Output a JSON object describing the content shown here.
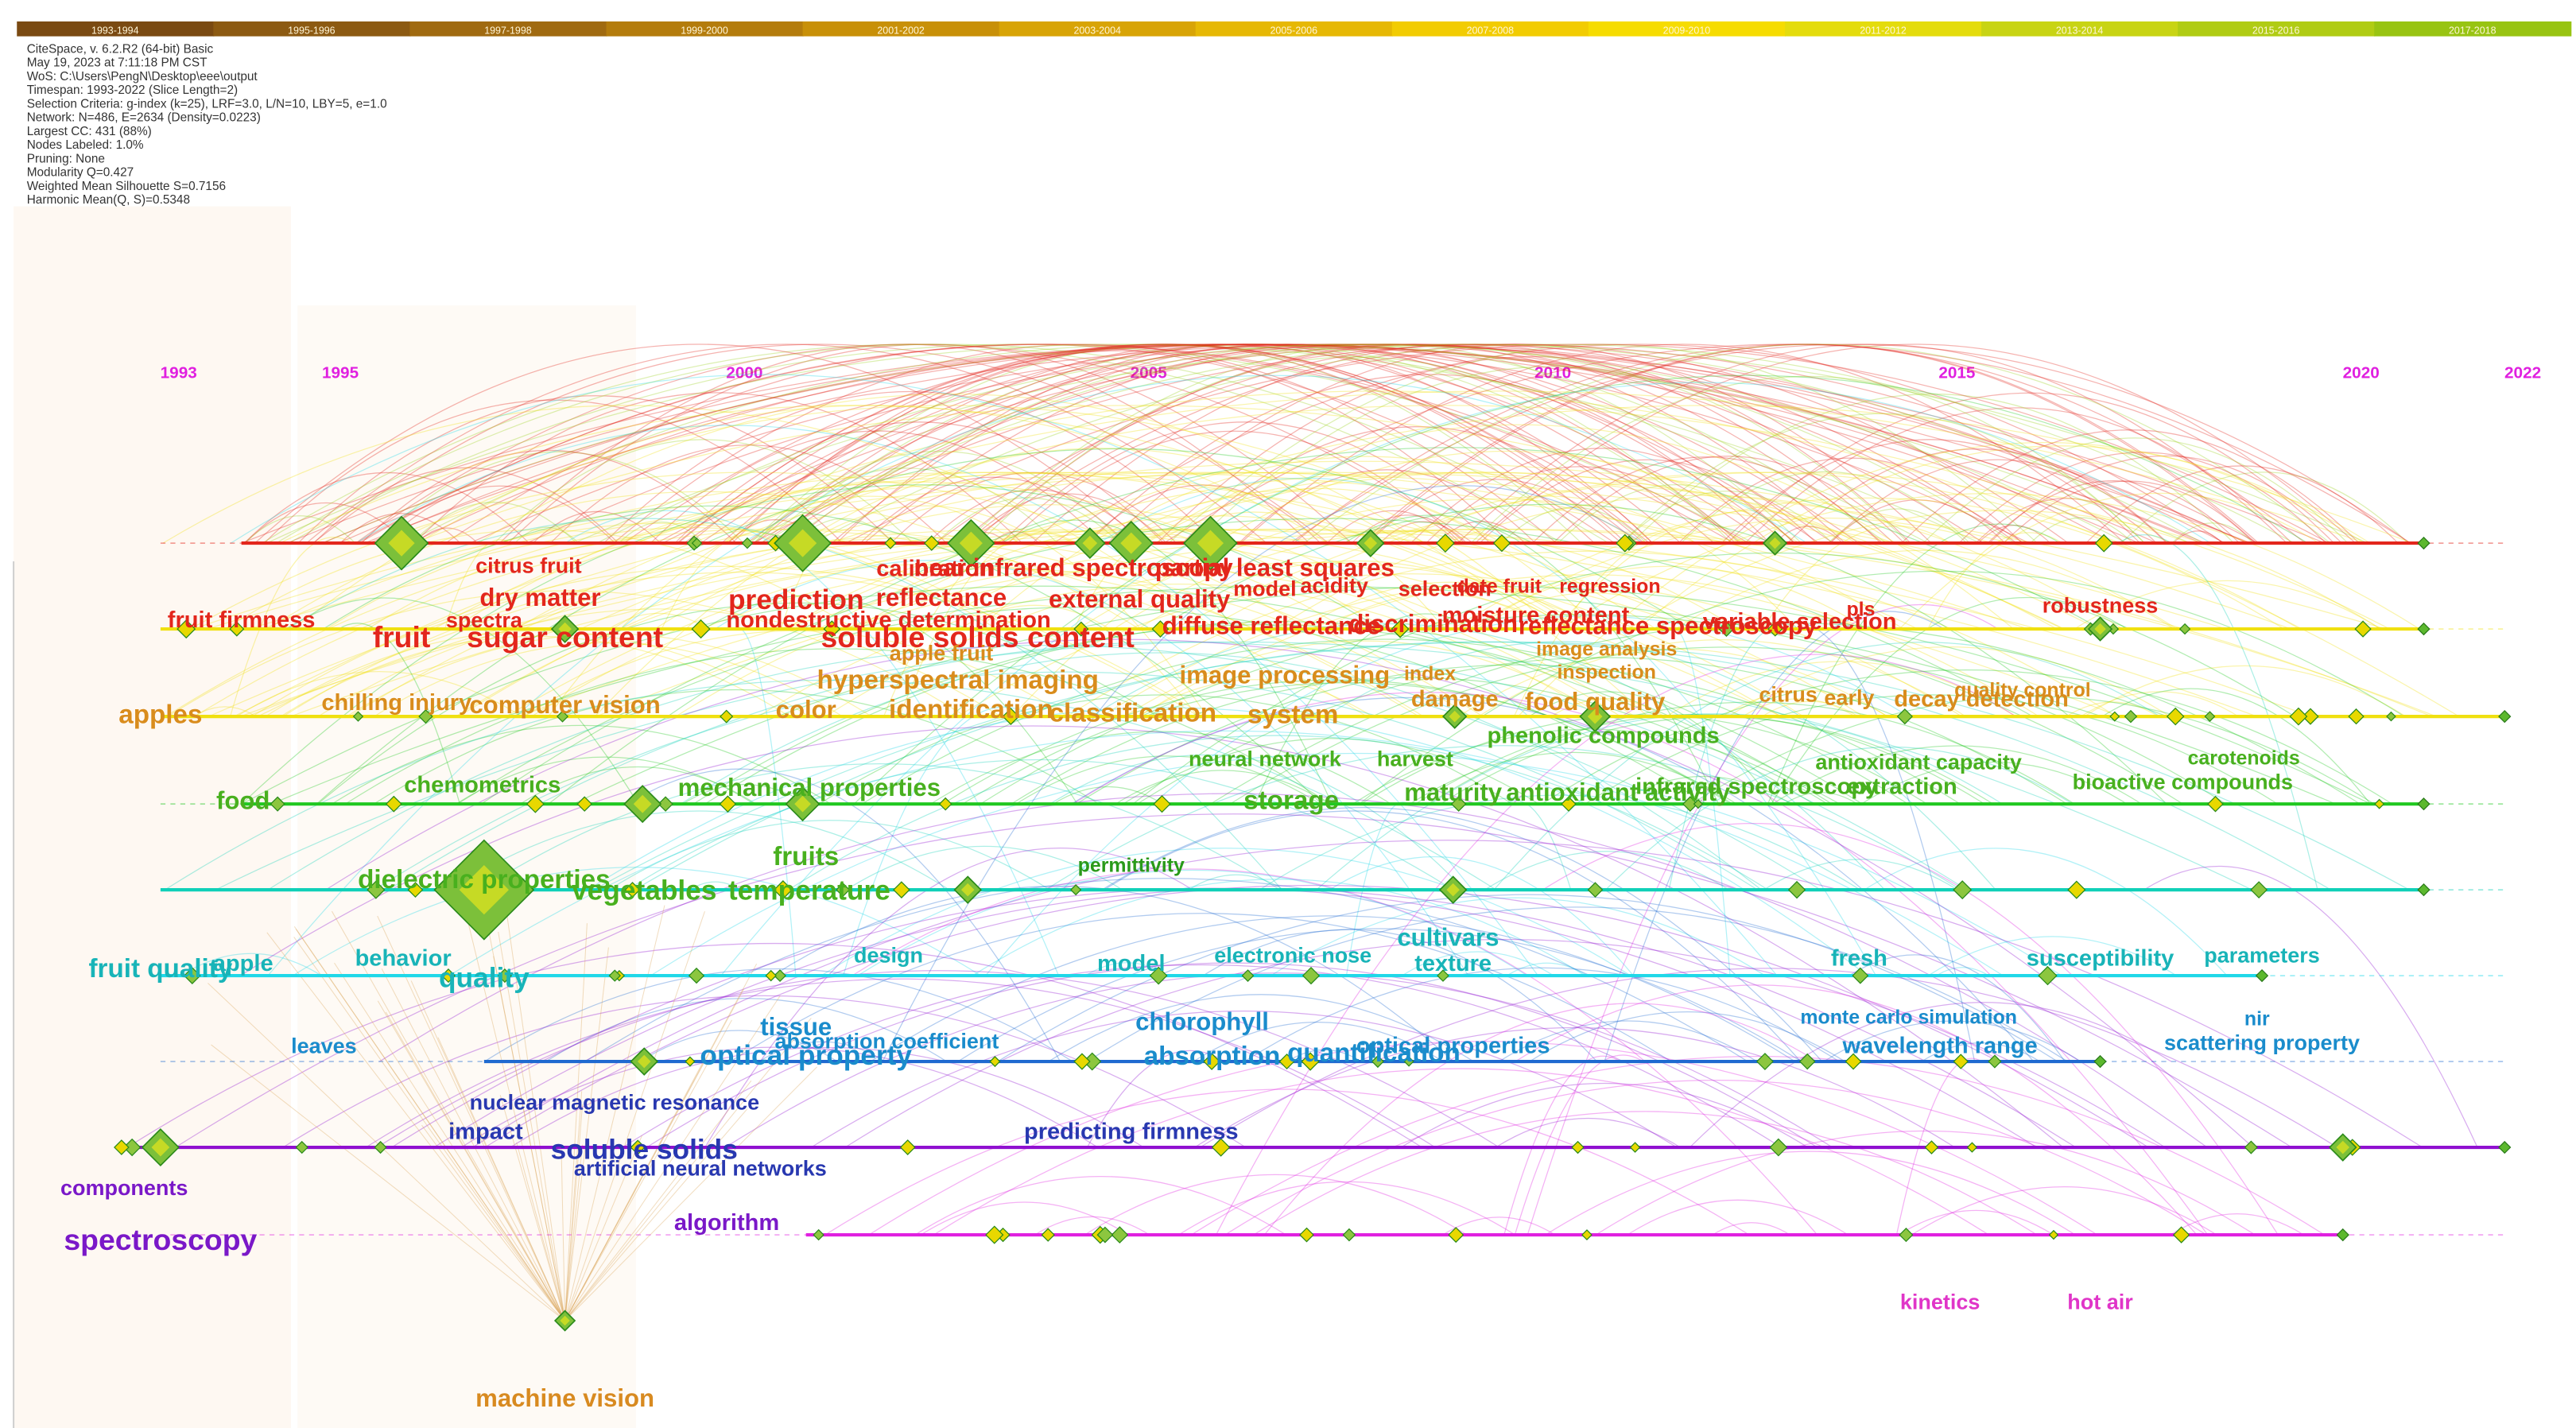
{
  "legend": {
    "slices": [
      "1993-1994",
      "1995-1996",
      "1997-1998",
      "1999-2000",
      "2001-2002",
      "2003-2004",
      "2005-2006",
      "2007-2008",
      "2009-2010",
      "2011-2012",
      "2013-2014",
      "2015-2016",
      "2017-2018"
    ],
    "colors": [
      "#7a4a12",
      "#8c5a12",
      "#a06a10",
      "#b47c0c",
      "#c89008",
      "#d8a406",
      "#e6b804",
      "#f2cc02",
      "#f6dc00",
      "#e4dc0c",
      "#c8d414",
      "#b0cc14",
      "#98c412"
    ]
  },
  "info": [
    "CiteSpace, v. 6.2.R2 (64-bit) Basic",
    "May 19, 2023 at 7:11:18 PM CST",
    "WoS: C:\\Users\\PengN\\Desktop\\eee\\output",
    "Timespan: 1993-2022 (Slice Length=2)",
    "Selection Criteria: g-index (k=25), LRF=3.0, L/N=10, LBY=5, e=1.0",
    "Network: N=486, E=2634 (Density=0.0223)",
    "Largest CC: 431 (88%)",
    "Nodes Labeled: 1.0%",
    "Pruning: None",
    "Modularity Q=0.427",
    "Weighted Mean Silhouette S=0.7156",
    "Harmonic Mean(Q, S)=0.5348"
  ],
  "years": [
    1993,
    1995,
    2000,
    2005,
    2010,
    2015,
    2020,
    2022
  ],
  "keywords": [
    "citrus fruit",
    "dry matter",
    "spectra",
    "fruit firmness",
    "fruit",
    "sugar content",
    "calibration",
    "near infrared spectroscopy",
    "partial least squares",
    "prediction",
    "reflectance",
    "external quality",
    "model",
    "acidity",
    "selection",
    "date fruit",
    "regression",
    "nondestructive determination",
    "soluble solids content",
    "diffuse reflectance",
    "discrimination",
    "moisture content",
    "reflectance spectroscopy",
    "variable selection",
    "pls",
    "robustness",
    "apple fruit",
    "hyperspectral imaging",
    "image processing",
    "index",
    "image analysis",
    "inspection",
    "chilling injury",
    "computer vision",
    "color",
    "identification",
    "classification",
    "system",
    "damage",
    "food quality",
    "citrus",
    "early",
    "decay detection",
    "quality control",
    "apples",
    "phenolic compounds",
    "neural network",
    "harvest",
    "antioxidant capacity",
    "carotenoids",
    "chemometrics",
    "mechanical properties",
    "bioactive compounds",
    "food",
    "storage",
    "maturity",
    "antioxidant activity",
    "infrared spectroscopy",
    "extraction",
    "fruits",
    "permittivity",
    "dielectric properties",
    "vegetables",
    "temperature",
    "cultivars",
    "texture",
    "fruit quality",
    "apple",
    "behavior",
    "quality",
    "design",
    "model",
    "electronic nose",
    "fresh",
    "susceptibility",
    "parameters",
    "chlorophyll",
    "tissue",
    "monte carlo simulation",
    "nir",
    "leaves",
    "absorption coefficient",
    "optical property",
    "absorption",
    "quantification",
    "optical properties",
    "wavelength range",
    "scattering property",
    "nuclear magnetic resonance",
    "impact",
    "predicting firmness",
    "soluble solids",
    "artificial neural networks",
    "components",
    "spectroscopy",
    "algorithm",
    "kinetics",
    "hot air",
    "machine vision"
  ]
}
